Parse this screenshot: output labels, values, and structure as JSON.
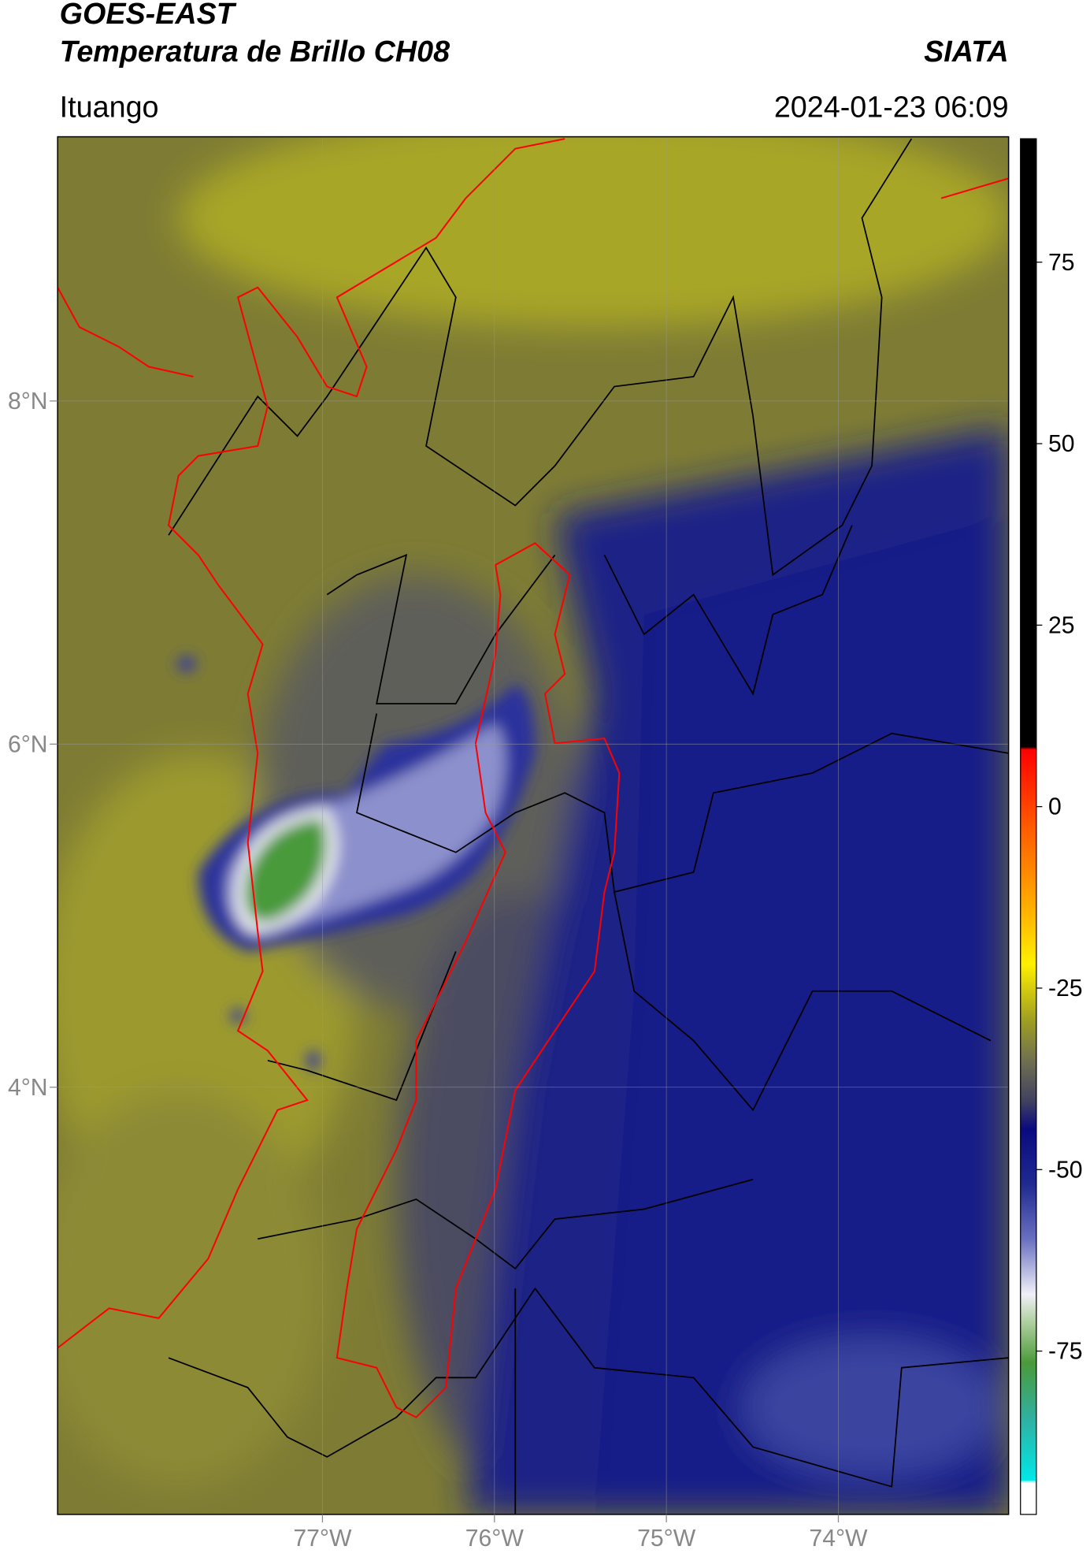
{
  "chart_data": {
    "type": "map",
    "title": "GOES-EAST",
    "subtitle": "Temperatura de Brillo CH08",
    "source": "SIATA",
    "location": "Ituango",
    "datetime": "2024-01-23 06:09",
    "xlim": [
      -78.54,
      -73.01
    ],
    "ylim": [
      1.51,
      9.54
    ],
    "xticks": [
      {
        "value": -77,
        "label": "77°W"
      },
      {
        "value": -76,
        "label": "76°W"
      },
      {
        "value": -75,
        "label": "75°W"
      },
      {
        "value": -74,
        "label": "74°W"
      }
    ],
    "yticks": [
      {
        "value": 8,
        "label": "8°N"
      },
      {
        "value": 6,
        "label": "6°N"
      },
      {
        "value": 4,
        "label": "4°N"
      }
    ],
    "grid": true,
    "colorbar": {
      "lim": [
        -97.5,
        92
      ],
      "ticks": [
        75,
        50,
        25,
        0,
        -25,
        -50,
        -75
      ]
    }
  }
}
